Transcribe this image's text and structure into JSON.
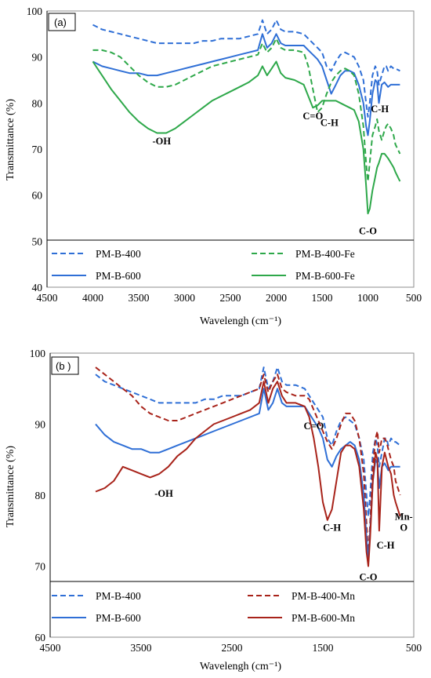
{
  "colors": {
    "blue": "#2f6fd6",
    "green": "#2ea84a",
    "darkred": "#a8231a",
    "axis": "#000000",
    "frame": "#8c8c8c"
  },
  "chart_data": [
    {
      "panel": "(a)",
      "type": "line",
      "xlabel": "Wavelengh (cm⁻¹)",
      "ylabel": "Transmittance (%)",
      "xlim": [
        4500,
        500
      ],
      "ylim": [
        40,
        100
      ],
      "x_ticks": [
        "4500",
        "4000",
        "3500",
        "3000",
        "2500",
        "2000",
        "1500",
        "1000",
        "500"
      ],
      "y_ticks": [
        "40",
        "50",
        "60",
        "70",
        "80",
        "90",
        "100"
      ],
      "grid": false,
      "legend": "bottom",
      "annotations": [
        {
          "text": "-OH",
          "x": 3250,
          "y": 71
        },
        {
          "text": "C=O",
          "x": 1600,
          "y": 76.5
        },
        {
          "text": "C-H",
          "x": 1420,
          "y": 75
        },
        {
          "text": "C-H",
          "x": 870,
          "y": 78
        },
        {
          "text": "C-O",
          "x": 1000,
          "y": 51.5
        }
      ],
      "series": [
        {
          "name": "PM-B-400",
          "color": "#2f6fd6",
          "dash": "dashed",
          "x": [
            4000,
            3900,
            3800,
            3700,
            3600,
            3500,
            3400,
            3300,
            3200,
            3100,
            3000,
            2900,
            2800,
            2700,
            2600,
            2500,
            2400,
            2300,
            2200,
            2150,
            2100,
            2050,
            2000,
            1950,
            1900,
            1800,
            1700,
            1650,
            1600,
            1550,
            1500,
            1450,
            1400,
            1350,
            1300,
            1250,
            1200,
            1150,
            1100,
            1050,
            1020,
            1000,
            980,
            950,
            920,
            900,
            880,
            850,
            820,
            800,
            780,
            750,
            720,
            700,
            650
          ],
          "y": [
            97,
            96,
            95.5,
            95,
            94.5,
            94,
            93.5,
            93,
            93,
            93,
            93,
            93,
            93.5,
            93.5,
            94,
            94,
            94,
            94.5,
            95,
            98,
            95,
            96,
            98,
            96,
            95.5,
            95.5,
            95,
            94,
            93,
            92,
            91,
            88,
            87,
            89,
            90.5,
            91,
            90.5,
            90,
            88,
            85,
            80,
            77,
            80,
            86,
            88,
            87,
            84,
            86,
            88,
            88,
            87,
            88,
            87.5,
            87.5,
            87
          ]
        },
        {
          "name": "PM-B-600",
          "color": "#2f6fd6",
          "dash": "solid",
          "x": [
            4000,
            3900,
            3800,
            3700,
            3600,
            3500,
            3400,
            3300,
            3200,
            3100,
            3000,
            2900,
            2800,
            2700,
            2600,
            2500,
            2400,
            2300,
            2200,
            2150,
            2100,
            2050,
            2000,
            1950,
            1900,
            1800,
            1700,
            1650,
            1600,
            1550,
            1500,
            1450,
            1400,
            1350,
            1300,
            1250,
            1200,
            1150,
            1100,
            1050,
            1020,
            1000,
            980,
            950,
            920,
            900,
            880,
            850,
            820,
            800,
            780,
            750,
            720,
            700,
            650
          ],
          "y": [
            89,
            88,
            87.5,
            87,
            86.5,
            86.5,
            86,
            86,
            86.5,
            87,
            87.5,
            88,
            88.5,
            89,
            89.5,
            90,
            90.5,
            91,
            91.5,
            95,
            92,
            93,
            95,
            93,
            92.5,
            92.5,
            92.5,
            91.5,
            90.5,
            89.5,
            88,
            85,
            82,
            84,
            86,
            87,
            87,
            86.5,
            84,
            80,
            75,
            73,
            76,
            82,
            85,
            84.5,
            80,
            84,
            84.5,
            84,
            83.5,
            84,
            84,
            84,
            84
          ]
        },
        {
          "name": "PM-B-400-Fe",
          "color": "#2ea84a",
          "dash": "dashed",
          "x": [
            4000,
            3900,
            3800,
            3700,
            3600,
            3500,
            3400,
            3300,
            3200,
            3100,
            3000,
            2900,
            2800,
            2700,
            2600,
            2500,
            2400,
            2300,
            2200,
            2150,
            2100,
            2050,
            2000,
            1950,
            1900,
            1800,
            1700,
            1650,
            1600,
            1550,
            1500,
            1450,
            1400,
            1350,
            1300,
            1250,
            1200,
            1150,
            1100,
            1050,
            1020,
            1000,
            980,
            950,
            920,
            900,
            880,
            850,
            820,
            800,
            780,
            750,
            720,
            700,
            650
          ],
          "y": [
            91.5,
            91.5,
            91,
            90,
            88,
            86,
            84.5,
            83.5,
            83.5,
            84,
            85,
            86,
            87,
            88,
            88.5,
            89,
            89.5,
            90,
            90.5,
            93,
            91,
            92,
            94,
            92,
            91.5,
            91.5,
            91,
            88,
            83,
            78,
            79,
            82,
            84.5,
            86,
            87,
            87.5,
            87,
            86,
            82,
            75,
            67,
            63,
            67,
            73,
            75,
            76.5,
            74,
            72,
            74,
            75,
            75.5,
            74.5,
            73,
            71,
            69
          ]
        },
        {
          "name": "PM-B-600-Fe",
          "color": "#2ea84a",
          "dash": "solid",
          "x": [
            4000,
            3900,
            3800,
            3700,
            3600,
            3500,
            3400,
            3300,
            3200,
            3100,
            3000,
            2900,
            2800,
            2700,
            2600,
            2500,
            2400,
            2300,
            2200,
            2150,
            2100,
            2050,
            2000,
            1950,
            1900,
            1800,
            1700,
            1650,
            1600,
            1550,
            1500,
            1450,
            1400,
            1350,
            1300,
            1250,
            1200,
            1150,
            1100,
            1050,
            1020,
            1000,
            980,
            950,
            920,
            900,
            880,
            850,
            820,
            800,
            780,
            750,
            720,
            700,
            650
          ],
          "y": [
            89,
            86,
            83,
            80.5,
            78,
            76,
            74.5,
            73.5,
            73.5,
            74.5,
            76,
            77.5,
            79,
            80.5,
            81.5,
            82.5,
            83.5,
            84.5,
            86,
            88,
            86,
            87.5,
            89,
            86.5,
            85.5,
            85,
            84,
            81.5,
            79,
            79.5,
            80.5,
            80.5,
            80.5,
            80.5,
            80,
            79.5,
            79,
            78.5,
            76,
            70,
            62,
            56,
            57,
            61,
            64,
            66,
            67,
            69,
            69,
            68.5,
            68,
            67,
            66,
            65,
            63
          ]
        }
      ],
      "legend_entries": [
        "PM-B-400",
        "PM-B-400-Fe",
        "PM-B-600",
        "PM-B-600-Fe"
      ]
    },
    {
      "panel": "(b )",
      "type": "line",
      "xlabel": "Wavelengh (cm⁻¹)",
      "ylabel": "Transmittance (%)",
      "xlim": [
        4500,
        500
      ],
      "ylim": [
        60,
        100
      ],
      "x_ticks": [
        "4500",
        "3500",
        "2500",
        "1500",
        "500"
      ],
      "y_ticks": [
        "60",
        "70",
        "80",
        "90",
        "100"
      ],
      "grid": false,
      "legend": "bottom",
      "annotations": [
        {
          "text": "C=O",
          "x": 1600,
          "y": 89.3
        },
        {
          "text": "-OH",
          "x": 3250,
          "y": 79.8
        },
        {
          "text": "C-H",
          "x": 1400,
          "y": 75
        },
        {
          "text": "C-O",
          "x": 1000,
          "y": 68
        },
        {
          "text": "C-H",
          "x": 810,
          "y": 72.5
        },
        {
          "text": "Mn-",
          "x": 610,
          "y": 76.5
        },
        {
          "text": "O",
          "x": 610,
          "y": 75
        }
      ],
      "series": [
        {
          "name": "PM-B-400",
          "color": "#2f6fd6",
          "dash": "dashed",
          "x": [
            4000,
            3900,
            3800,
            3700,
            3600,
            3500,
            3400,
            3300,
            3200,
            3100,
            3000,
            2900,
            2800,
            2700,
            2600,
            2500,
            2400,
            2300,
            2200,
            2150,
            2100,
            2050,
            2000,
            1950,
            1900,
            1800,
            1700,
            1650,
            1600,
            1550,
            1500,
            1450,
            1400,
            1350,
            1300,
            1250,
            1200,
            1150,
            1100,
            1050,
            1020,
            1000,
            980,
            950,
            920,
            900,
            880,
            850,
            820,
            800,
            780,
            750,
            720,
            700,
            650
          ],
          "y": [
            97,
            96,
            95.5,
            95,
            94.5,
            94,
            93.5,
            93,
            93,
            93,
            93,
            93,
            93.5,
            93.5,
            94,
            94,
            94,
            94.5,
            95,
            98,
            95,
            96,
            98,
            96,
            95.5,
            95.5,
            95,
            94,
            93,
            92,
            91,
            88,
            87,
            89,
            90.5,
            91,
            90.5,
            90,
            88,
            85,
            80,
            77,
            80,
            86,
            88,
            87,
            84,
            86,
            88,
            88,
            87,
            88,
            87.5,
            87.5,
            87
          ]
        },
        {
          "name": "PM-B-400-Mn",
          "color": "#a8231a",
          "dash": "dashed",
          "x": [
            4000,
            3900,
            3800,
            3700,
            3600,
            3500,
            3400,
            3300,
            3200,
            3100,
            3000,
            2900,
            2800,
            2700,
            2600,
            2500,
            2400,
            2300,
            2200,
            2150,
            2100,
            2050,
            2000,
            1950,
            1900,
            1800,
            1700,
            1650,
            1600,
            1550,
            1500,
            1450,
            1400,
            1350,
            1300,
            1250,
            1200,
            1150,
            1100,
            1050,
            1020,
            1000,
            980,
            950,
            920,
            900,
            880,
            850,
            820,
            800,
            780,
            750,
            720,
            700,
            650
          ],
          "y": [
            98,
            97,
            96,
            95,
            94,
            92.5,
            91.5,
            91,
            90.5,
            90.5,
            91,
            91.5,
            92,
            92.5,
            93,
            93.5,
            94,
            94.5,
            95,
            97,
            94.5,
            96,
            97,
            95,
            94.5,
            94,
            94,
            93.5,
            92,
            90.5,
            89,
            87.5,
            86.5,
            88,
            90,
            91.5,
            91.5,
            90.5,
            88,
            83,
            76,
            71.5,
            76,
            84,
            88,
            89,
            86,
            88,
            88,
            87.5,
            86.5,
            85,
            84,
            82,
            80
          ]
        },
        {
          "name": "PM-B-600",
          "color": "#2f6fd6",
          "dash": "solid",
          "x": [
            4000,
            3900,
            3800,
            3700,
            3600,
            3500,
            3400,
            3300,
            3200,
            3100,
            3000,
            2900,
            2800,
            2700,
            2600,
            2500,
            2400,
            2300,
            2200,
            2150,
            2100,
            2050,
            2000,
            1950,
            1900,
            1800,
            1700,
            1650,
            1600,
            1550,
            1500,
            1450,
            1400,
            1350,
            1300,
            1250,
            1200,
            1150,
            1100,
            1050,
            1020,
            1000,
            980,
            950,
            920,
            900,
            880,
            850,
            820,
            800,
            780,
            750,
            720,
            700,
            650
          ],
          "y": [
            90,
            88.5,
            87.5,
            87,
            86.5,
            86.5,
            86,
            86,
            86.5,
            87,
            87.5,
            88,
            88.5,
            89,
            89.5,
            90,
            90.5,
            91,
            91.5,
            95,
            92,
            93,
            95,
            93,
            92.5,
            92.5,
            92.5,
            91.5,
            90.5,
            89.5,
            88,
            85,
            84,
            85.5,
            86.5,
            87,
            87.5,
            87,
            85,
            80,
            74,
            70.5,
            75,
            82,
            85,
            84.5,
            81,
            84,
            84.5,
            84,
            83.5,
            84,
            84,
            84,
            84
          ]
        },
        {
          "name": "PM-B-600-Mn",
          "color": "#a8231a",
          "dash": "solid",
          "x": [
            4000,
            3900,
            3800,
            3700,
            3600,
            3500,
            3400,
            3300,
            3200,
            3100,
            3000,
            2900,
            2800,
            2700,
            2600,
            2500,
            2400,
            2300,
            2200,
            2150,
            2100,
            2050,
            2000,
            1950,
            1900,
            1800,
            1700,
            1650,
            1600,
            1550,
            1500,
            1450,
            1400,
            1350,
            1300,
            1250,
            1200,
            1150,
            1100,
            1050,
            1020,
            1000,
            980,
            950,
            920,
            900,
            880,
            850,
            820,
            800,
            780,
            750,
            720,
            700,
            650
          ],
          "y": [
            80.5,
            81,
            82,
            84,
            83.5,
            83,
            82.5,
            83,
            84,
            85.5,
            86.5,
            88,
            89,
            90,
            90.5,
            91,
            91.5,
            92,
            93,
            96,
            93,
            95,
            96,
            94,
            93,
            93,
            92.5,
            91,
            88,
            84,
            79,
            76.5,
            78,
            82,
            86,
            87,
            87,
            86.5,
            84,
            78,
            72,
            70,
            74,
            82,
            86,
            85,
            75,
            84,
            86,
            85,
            84,
            83,
            80,
            79,
            77
          ]
        }
      ],
      "legend_entries": [
        "PM-B-400",
        "PM-B-400-Mn",
        "PM-B-600",
        "PM-B-600-Mn"
      ]
    }
  ]
}
